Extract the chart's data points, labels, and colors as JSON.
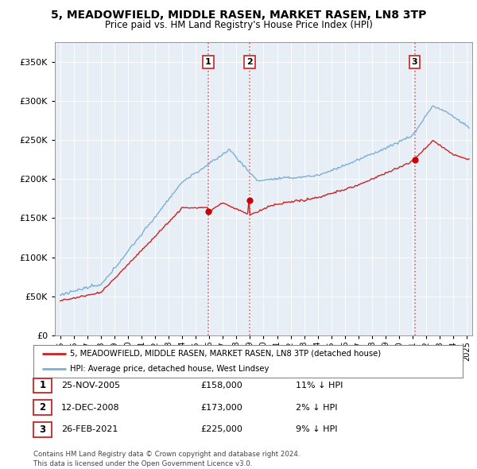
{
  "title": "5, MEADOWFIELD, MIDDLE RASEN, MARKET RASEN, LN8 3TP",
  "subtitle": "Price paid vs. HM Land Registry's House Price Index (HPI)",
  "ytick_values": [
    0,
    50000,
    100000,
    150000,
    200000,
    250000,
    300000,
    350000
  ],
  "ylim": [
    0,
    375000
  ],
  "sale_dates_num": [
    2005.9,
    2008.95,
    2021.15
  ],
  "sale_prices": [
    158000,
    173000,
    225000
  ],
  "sale_labels": [
    "1",
    "2",
    "3"
  ],
  "vline_color": "#dd6666",
  "sale_marker_color": "#cc0000",
  "hpi_line_color": "#7ab0d4",
  "price_line_color": "#cc2222",
  "background_color": "#e8eef6",
  "grid_color": "#ffffff",
  "legend_line1": "5, MEADOWFIELD, MIDDLE RASEN, MARKET RASEN, LN8 3TP (detached house)",
  "legend_line2": "HPI: Average price, detached house, West Lindsey",
  "table_data": [
    {
      "num": "1",
      "date": "25-NOV-2005",
      "price": "£158,000",
      "hpi": "11% ↓ HPI"
    },
    {
      "num": "2",
      "date": "12-DEC-2008",
      "price": "£173,000",
      "hpi": "2% ↓ HPI"
    },
    {
      "num": "3",
      "date": "26-FEB-2021",
      "price": "£225,000",
      "hpi": "9% ↓ HPI"
    }
  ],
  "footer": "Contains HM Land Registry data © Crown copyright and database right 2024.\nThis data is licensed under the Open Government Licence v3.0.",
  "xmin": 1994.6,
  "xmax": 2025.4
}
